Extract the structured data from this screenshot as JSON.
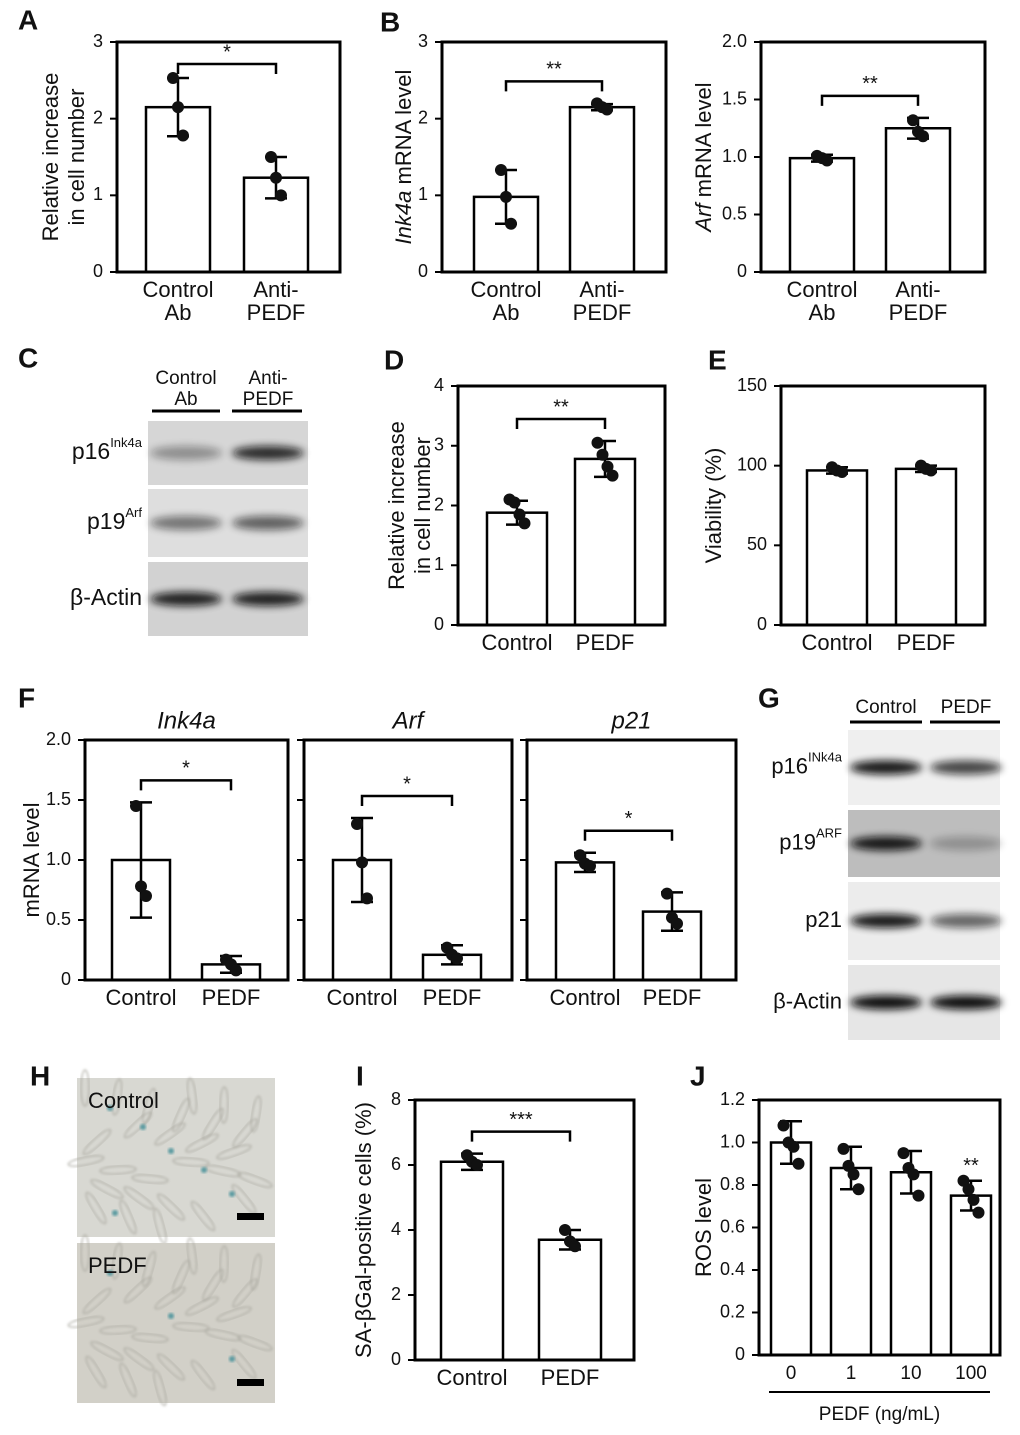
{
  "chart_data": [
    {
      "type": "bar",
      "panel": "A",
      "ylabel": [
        "Relative increase",
        "in cell number"
      ],
      "categories": [
        [
          "Control",
          "Ab"
        ],
        [
          "Anti-",
          "PEDF"
        ]
      ],
      "values": [
        2.15,
        1.23
      ],
      "errors": [
        0.38,
        0.27
      ],
      "points": [
        [
          2.53,
          2.15,
          1.78
        ],
        [
          1.5,
          1.23,
          1.0
        ]
      ],
      "color": "#ffffff",
      "ylim": [
        0,
        3
      ],
      "yticks": [
        0,
        1,
        2,
        3
      ],
      "significance": "*"
    },
    {
      "type": "bar",
      "panel": "B",
      "ylabel": [
        [
          {
            "text": "Ink4a",
            "italic": true
          },
          {
            "text": " mRNA level"
          }
        ]
      ],
      "categories": [
        [
          "Control",
          "Ab"
        ],
        [
          "Anti-",
          "PEDF"
        ]
      ],
      "values": [
        0.98,
        2.15
      ],
      "errors": [
        0.35,
        0.04
      ],
      "points": [
        [
          1.33,
          0.98,
          0.63
        ],
        [
          2.2,
          2.15,
          2.12
        ]
      ],
      "color": "#ffffff",
      "ylim": [
        0,
        3
      ],
      "yticks": [
        0,
        1,
        2,
        3
      ],
      "significance": "**"
    },
    {
      "type": "bar",
      "ylabel": [
        [
          {
            "text": "Arf",
            "italic": true
          },
          {
            "text": " mRNA level"
          }
        ]
      ],
      "categories": [
        [
          "Control",
          "Ab"
        ],
        [
          "Anti-",
          "PEDF"
        ]
      ],
      "values": [
        0.99,
        1.25
      ],
      "errors": [
        0.03,
        0.09
      ],
      "points": [
        [
          1.01,
          0.99,
          0.97
        ],
        [
          1.32,
          1.22,
          1.18
        ]
      ],
      "color": "#ffffff",
      "ylim": [
        0,
        2
      ],
      "yticks": [
        0,
        0.5,
        {
          "value": 1,
          "label": "1.0"
        },
        1.5,
        {
          "value": 2,
          "label": "2.0"
        }
      ],
      "significance": "**"
    },
    {
      "type": "bar",
      "panel": "D",
      "ylabel": [
        "Relative increase",
        "in cell number"
      ],
      "categories": [
        "Control",
        "PEDF"
      ],
      "values": [
        1.88,
        2.78
      ],
      "errors": [
        0.2,
        0.3
      ],
      "points": [
        [
          2.1,
          2.05,
          1.85,
          1.7
        ],
        [
          3.05,
          2.85,
          2.65,
          2.5
        ]
      ],
      "color": "#ffffff",
      "ylim": [
        0,
        4
      ],
      "yticks": [
        0,
        1,
        2,
        3,
        4
      ],
      "significance": "**"
    },
    {
      "type": "bar",
      "panel": "E",
      "ylabel": "Viability (%)",
      "categories": [
        "Control",
        "PEDF"
      ],
      "values": [
        97,
        98
      ],
      "errors": [
        2,
        2
      ],
      "points": [
        [
          99,
          97,
          96
        ],
        [
          100,
          98,
          97
        ]
      ],
      "color": "#ffffff",
      "ylim": [
        0,
        150
      ],
      "yticks": [
        0,
        50,
        100,
        150
      ]
    },
    {
      "type": "bar",
      "panel": "F",
      "title": "Ink4a",
      "ylabel": "mRNA level",
      "categories": [
        "Control",
        "PEDF"
      ],
      "values": [
        1.0,
        0.13
      ],
      "errors": [
        0.48,
        0.07
      ],
      "points": [
        [
          1.45,
          0.78,
          0.7
        ],
        [
          0.17,
          0.13,
          0.08
        ]
      ],
      "color": "#ffffff",
      "ylim": [
        0,
        2
      ],
      "yticks": [
        0,
        0.5,
        {
          "value": 1,
          "label": "1.0"
        },
        1.5,
        {
          "value": 2,
          "label": "2.0"
        }
      ],
      "significance": "*"
    },
    {
      "type": "bar",
      "title": "Arf",
      "categories": [
        "Control",
        "PEDF"
      ],
      "values": [
        1.0,
        0.21
      ],
      "errors": [
        0.35,
        0.08
      ],
      "points": [
        [
          1.3,
          0.98,
          0.68
        ],
        [
          0.27,
          0.21,
          0.18
        ]
      ],
      "color": "#ffffff",
      "ylim": [
        0,
        2
      ],
      "yticks": [
        0,
        0.5,
        1,
        1.5,
        2
      ],
      "ytick_labels": false,
      "significance": "*"
    },
    {
      "type": "bar",
      "title": "p21",
      "categories": [
        "Control",
        "PEDF"
      ],
      "values": [
        0.98,
        0.57
      ],
      "errors": [
        0.08,
        0.16
      ],
      "points": [
        [
          1.04,
          0.97,
          0.95
        ],
        [
          0.72,
          0.52,
          0.47
        ]
      ],
      "color": "#ffffff",
      "ylim": [
        0,
        2
      ],
      "yticks": [
        0,
        0.5,
        1,
        1.5,
        2
      ],
      "ytick_labels": false,
      "significance": "*"
    },
    {
      "type": "bar",
      "panel": "I",
      "ylabel": "SA-βGal-positive cells (%)",
      "categories": [
        "Control",
        "PEDF"
      ],
      "values": [
        6.1,
        3.7
      ],
      "errors": [
        0.25,
        0.3
      ],
      "points": [
        [
          6.3,
          6.1,
          6.0
        ],
        [
          4.0,
          3.65,
          3.5
        ]
      ],
      "color": "#ffffff",
      "ylim": [
        0,
        8
      ],
      "yticks": [
        0,
        2,
        4,
        6,
        8
      ],
      "significance": "***"
    },
    {
      "type": "bar",
      "panel": "J",
      "ylabel": "ROS level",
      "xlabel": "PEDF (ng/mL)",
      "categories": [
        "0",
        "1",
        "10",
        "100"
      ],
      "values": [
        1.0,
        0.88,
        0.86,
        0.75
      ],
      "errors": [
        0.1,
        0.1,
        0.1,
        0.07
      ],
      "points": [
        [
          1.08,
          1.0,
          0.98,
          0.9
        ],
        [
          0.97,
          0.89,
          0.85,
          0.78
        ],
        [
          0.95,
          0.88,
          0.85,
          0.75
        ],
        [
          0.82,
          0.78,
          0.73,
          0.67
        ]
      ],
      "color": "#ffffff",
      "ylim": [
        0,
        1.2
      ],
      "yticks": [
        0,
        0.2,
        0.4,
        0.6,
        0.8,
        {
          "value": 1,
          "label": "1.0"
        },
        1.2
      ],
      "significance": "**"
    }
  ],
  "blots": [
    {
      "panel": "C",
      "columns": [
        [
          "Control",
          "Ab"
        ],
        [
          "Anti-",
          "PEDF"
        ]
      ],
      "rows": [
        {
          "base": "p16",
          "sup": "Ink4a"
        },
        {
          "base": "p19",
          "sup": "Arf"
        },
        {
          "base": "β-Actin"
        }
      ]
    },
    {
      "panel": "G",
      "columns": [
        "Control",
        "PEDF"
      ],
      "rows": [
        {
          "base": "p16",
          "sup": "INk4a"
        },
        {
          "base": "p19",
          "sup": "ARF"
        },
        {
          "base": "p21"
        },
        {
          "base": "β-Actin"
        }
      ]
    }
  ],
  "images": {
    "panel": "H",
    "labels": [
      "Control",
      "PEDF"
    ]
  }
}
